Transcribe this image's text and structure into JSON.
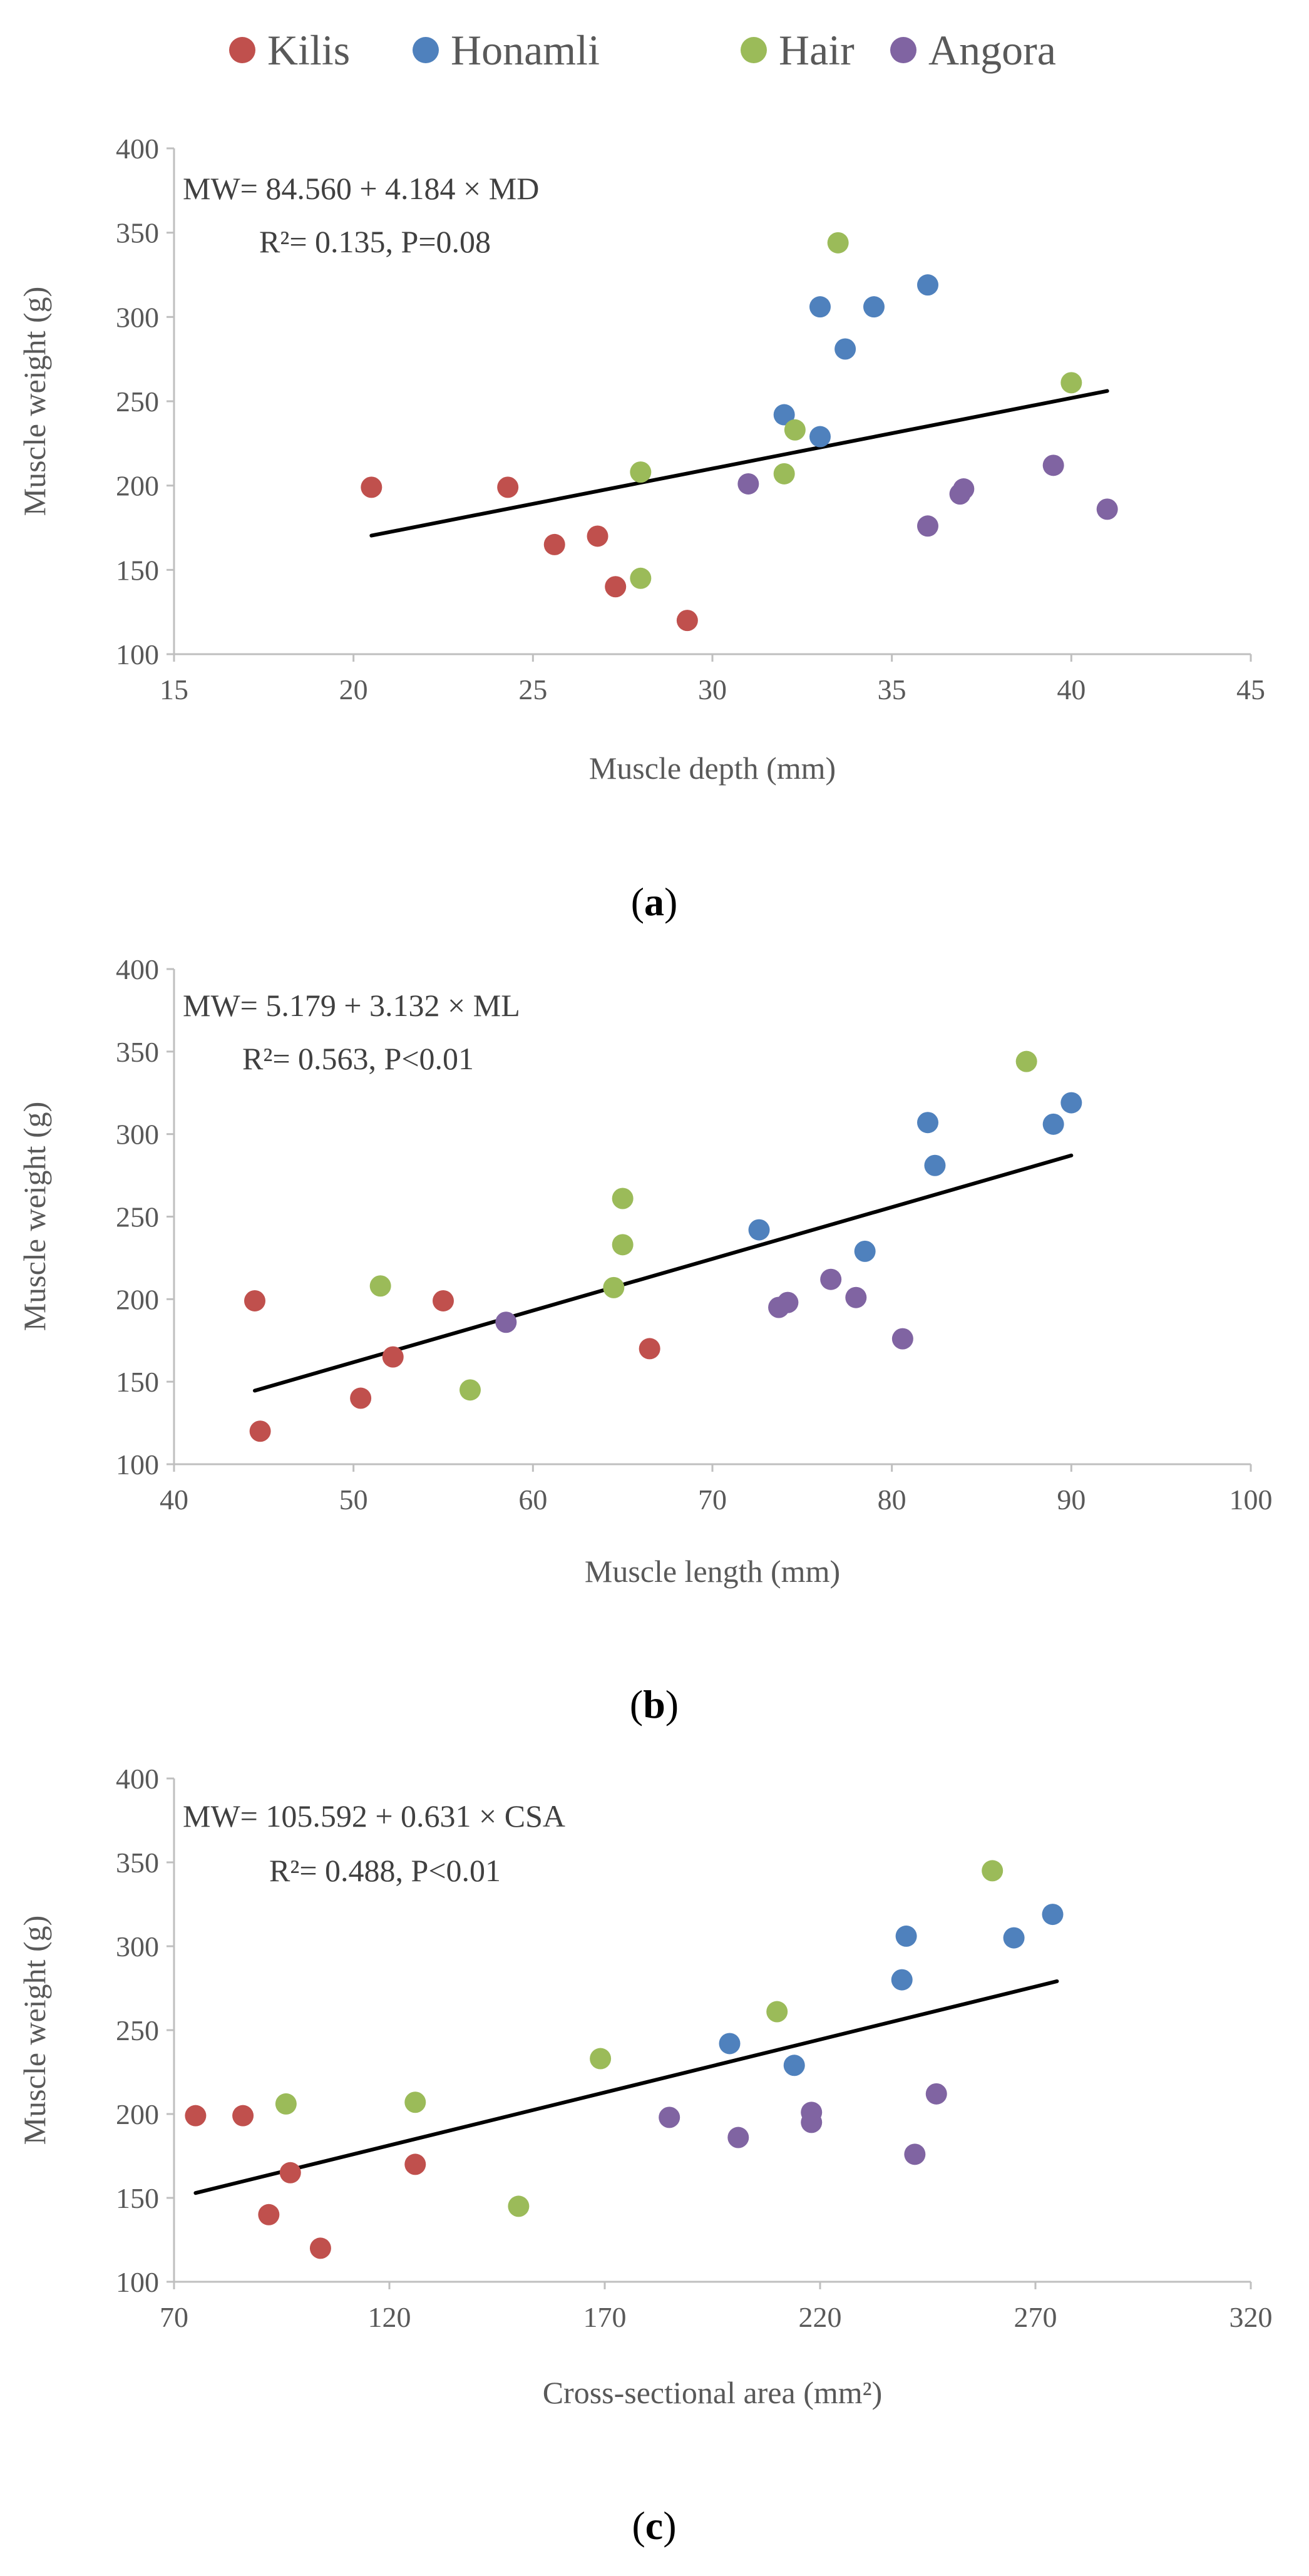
{
  "legend": [
    {
      "name": "Kilis",
      "color": "#C0504D"
    },
    {
      "name": "Honamli",
      "color": "#4F81BD"
    },
    {
      "name": "Hair",
      "color": "#9BBB59"
    },
    {
      "name": "Angora",
      "color": "#8064A2"
    }
  ],
  "chart_data": [
    {
      "type": "scatter",
      "caption": "a",
      "xlabel": "Muscle depth (mm)",
      "ylabel": "Muscle weight (g)",
      "xlim": [
        15,
        45
      ],
      "ylim": [
        100,
        400
      ],
      "xticks": [
        15,
        20,
        25,
        30,
        35,
        40,
        45
      ],
      "yticks": [
        100,
        150,
        200,
        250,
        300,
        350,
        400
      ],
      "equation": "MW= 84.560 + 4.184 × MD",
      "stats": "R²= 0.135, P=0.08",
      "trendline": {
        "intercept": 84.56,
        "slope": 4.184,
        "x_range": [
          20.5,
          41
        ]
      },
      "series": [
        {
          "name": "Kilis",
          "color": "#C0504D",
          "points": [
            [
              20.5,
              199
            ],
            [
              24.3,
              199
            ],
            [
              25.6,
              165
            ],
            [
              26.8,
              170
            ],
            [
              27.3,
              140
            ],
            [
              29.3,
              120
            ]
          ]
        },
        {
          "name": "Honamli",
          "color": "#4F81BD",
          "points": [
            [
              33,
              306
            ],
            [
              34.5,
              306
            ],
            [
              36,
              319
            ],
            [
              33.7,
              281
            ],
            [
              32,
              242
            ],
            [
              33,
              229
            ]
          ]
        },
        {
          "name": "Hair",
          "color": "#9BBB59",
          "points": [
            [
              33.5,
              344
            ],
            [
              40,
              261
            ],
            [
              32.3,
              233
            ],
            [
              28,
              208
            ],
            [
              32,
              207
            ],
            [
              28,
              145
            ]
          ]
        },
        {
          "name": "Angora",
          "color": "#8064A2",
          "points": [
            [
              31,
              201
            ],
            [
              37,
              198
            ],
            [
              36.9,
              195
            ],
            [
              39.5,
              212
            ],
            [
              41,
              186
            ],
            [
              36,
              176
            ]
          ]
        }
      ]
    },
    {
      "type": "scatter",
      "caption": "b",
      "xlabel": "Muscle length (mm)",
      "ylabel": "Muscle weight (g)",
      "xlim": [
        40,
        100
      ],
      "ylim": [
        100,
        400
      ],
      "xticks": [
        40,
        50,
        60,
        70,
        80,
        90,
        100
      ],
      "yticks": [
        100,
        150,
        200,
        250,
        300,
        350,
        400
      ],
      "equation": "MW= 5.179 + 3.132 × ML",
      "stats": "R²= 0.563, P<0.01",
      "trendline": {
        "intercept": 5.179,
        "slope": 3.132,
        "x_range": [
          44.5,
          90
        ]
      },
      "series": [
        {
          "name": "Kilis",
          "color": "#C0504D",
          "points": [
            [
              44.5,
              199
            ],
            [
              55,
              199
            ],
            [
              52.2,
              165
            ],
            [
              66.5,
              170
            ],
            [
              50.4,
              140
            ],
            [
              44.8,
              120
            ]
          ]
        },
        {
          "name": "Honamli",
          "color": "#4F81BD",
          "points": [
            [
              82,
              307
            ],
            [
              89,
              306
            ],
            [
              90,
              319
            ],
            [
              82.4,
              281
            ],
            [
              72.6,
              242
            ],
            [
              78.5,
              229
            ]
          ]
        },
        {
          "name": "Hair",
          "color": "#9BBB59",
          "points": [
            [
              87.5,
              344
            ],
            [
              65,
              261
            ],
            [
              65,
              233
            ],
            [
              51.5,
              208
            ],
            [
              64.5,
              207
            ],
            [
              56.5,
              145
            ]
          ]
        },
        {
          "name": "Angora",
          "color": "#8064A2",
          "points": [
            [
              58.5,
              186
            ],
            [
              73.7,
              195
            ],
            [
              74.2,
              198
            ],
            [
              76.6,
              212
            ],
            [
              78,
              201
            ],
            [
              80.6,
              176
            ]
          ]
        }
      ]
    },
    {
      "type": "scatter",
      "caption": "c",
      "xlabel": "Cross-sectional area (mm²)",
      "ylabel": "Muscle weight (g)",
      "xlim": [
        70,
        320
      ],
      "ylim": [
        100,
        400
      ],
      "xticks": [
        70,
        120,
        170,
        220,
        270,
        320
      ],
      "yticks": [
        100,
        150,
        200,
        250,
        300,
        350,
        400
      ],
      "equation": "MW= 105.592 + 0.631 × CSA",
      "stats": "R²= 0.488, P<0.01",
      "trendline": {
        "intercept": 105.592,
        "slope": 0.631,
        "x_range": [
          75,
          275
        ]
      },
      "series": [
        {
          "name": "Kilis",
          "color": "#C0504D",
          "points": [
            [
              75,
              199
            ],
            [
              86,
              199
            ],
            [
              97,
              165
            ],
            [
              126,
              170
            ],
            [
              92,
              140
            ],
            [
              104,
              120
            ]
          ]
        },
        {
          "name": "Honamli",
          "color": "#4F81BD",
          "points": [
            [
              240,
              306
            ],
            [
              265,
              305
            ],
            [
              274,
              319
            ],
            [
              239,
              280
            ],
            [
              199,
              242
            ],
            [
              214,
              229
            ]
          ]
        },
        {
          "name": "Hair",
          "color": "#9BBB59",
          "points": [
            [
              260,
              345
            ],
            [
              210,
              261
            ],
            [
              169,
              233
            ],
            [
              96,
              206
            ],
            [
              126,
              207
            ],
            [
              150,
              145
            ]
          ]
        },
        {
          "name": "Angora",
          "color": "#8064A2",
          "points": [
            [
              185,
              198
            ],
            [
              218,
              195
            ],
            [
              218,
              201
            ],
            [
              247,
              212
            ],
            [
              201,
              186
            ],
            [
              242,
              176
            ]
          ]
        }
      ]
    }
  ]
}
